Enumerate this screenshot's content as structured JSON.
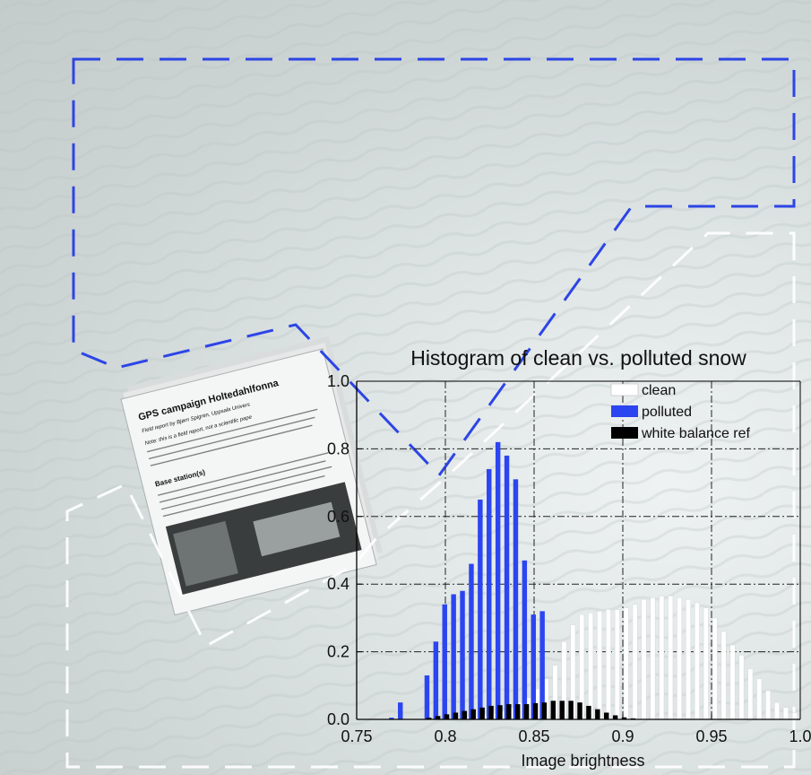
{
  "doc": {
    "heading": "GPS campaign Holtedahlfonna",
    "byline": "Field report by Bjørn Spigren, Uppsala Univers",
    "note": "Note: this is a field report, not a scientific pape",
    "section": "Base station(s)"
  },
  "chart_data": {
    "type": "bar",
    "title": "Histogram of clean vs. polluted snow",
    "xlabel": "Image brightness",
    "ylabel": "",
    "xlim": [
      0.75,
      1.0
    ],
    "ylim": [
      0,
      1.0
    ],
    "xticks": [
      "0.75",
      "0.8",
      "0.85",
      "0.9",
      "0.95",
      "1.0"
    ],
    "yticks": [
      "0.0",
      "0.2",
      "0.4",
      "0.6",
      "0.8",
      "1.0"
    ],
    "grid": true,
    "legend_position": "top-right",
    "series": [
      {
        "name": "clean",
        "color": "#ffffff",
        "x": [
          0.77,
          0.775,
          0.78,
          0.785,
          0.79,
          0.795,
          0.8,
          0.805,
          0.81,
          0.815,
          0.82,
          0.825,
          0.83,
          0.835,
          0.84,
          0.845,
          0.85,
          0.855,
          0.86,
          0.865,
          0.87,
          0.875,
          0.88,
          0.885,
          0.89,
          0.895,
          0.9,
          0.905,
          0.91,
          0.915,
          0.92,
          0.925,
          0.93,
          0.935,
          0.94,
          0.945,
          0.95,
          0.955,
          0.96,
          0.965,
          0.97,
          0.975,
          0.98,
          0.985,
          0.99,
          0.995
        ],
        "values": [
          0,
          0,
          0,
          0,
          0,
          0,
          0.002,
          0.004,
          0.006,
          0.008,
          0.012,
          0.018,
          0.025,
          0.035,
          0.05,
          0.065,
          0.09,
          0.12,
          0.16,
          0.23,
          0.28,
          0.31,
          0.315,
          0.32,
          0.325,
          0.325,
          0.33,
          0.34,
          0.355,
          0.36,
          0.365,
          0.365,
          0.36,
          0.355,
          0.345,
          0.33,
          0.3,
          0.26,
          0.22,
          0.19,
          0.15,
          0.12,
          0.085,
          0.05,
          0.035,
          0.02
        ]
      },
      {
        "name": "polluted",
        "color": "#2b45f0",
        "x": [
          0.77,
          0.775,
          0.78,
          0.785,
          0.79,
          0.795,
          0.8,
          0.805,
          0.81,
          0.815,
          0.82,
          0.825,
          0.83,
          0.835,
          0.84,
          0.845,
          0.85,
          0.855,
          0.86,
          0.865,
          0.87,
          0.875,
          0.88,
          0.885,
          0.89,
          0.895,
          0.9,
          0.905,
          0.91,
          0.915,
          0.92,
          0.925,
          0.93,
          0.935,
          0.94,
          0.945,
          0.95,
          0.955,
          0.96,
          0.965,
          0.97,
          0.975,
          0.98,
          0.985,
          0.99,
          0.995
        ],
        "values": [
          0.005,
          0.05,
          0.0,
          0.0,
          0.13,
          0.23,
          0.34,
          0.37,
          0.38,
          0.46,
          0.65,
          0.74,
          0.82,
          0.78,
          0.71,
          0.47,
          0.31,
          0.32,
          0.0,
          0,
          0,
          0,
          0,
          0,
          0,
          0,
          0,
          0,
          0,
          0,
          0,
          0,
          0,
          0,
          0,
          0,
          0,
          0,
          0,
          0,
          0,
          0,
          0,
          0,
          0,
          0
        ]
      },
      {
        "name": "white balance ref",
        "color": "#000000",
        "x": [
          0.77,
          0.775,
          0.78,
          0.785,
          0.79,
          0.795,
          0.8,
          0.805,
          0.81,
          0.815,
          0.82,
          0.825,
          0.83,
          0.835,
          0.84,
          0.845,
          0.85,
          0.855,
          0.86,
          0.865,
          0.87,
          0.875,
          0.88,
          0.885,
          0.89,
          0.895,
          0.9,
          0.905,
          0.91,
          0.915,
          0.92,
          0.925,
          0.93,
          0.935,
          0.94,
          0.945,
          0.95,
          0.955,
          0.96,
          0.965,
          0.97,
          0.975,
          0.98,
          0.985,
          0.99,
          0.995
        ],
        "values": [
          0,
          0,
          0,
          0,
          0.005,
          0.01,
          0.015,
          0.02,
          0.025,
          0.03,
          0.035,
          0.04,
          0.042,
          0.045,
          0.045,
          0.045,
          0.048,
          0.05,
          0.055,
          0.055,
          0.055,
          0.05,
          0.04,
          0.03,
          0.02,
          0.012,
          0.006,
          0.003,
          0.001,
          0,
          0,
          0,
          0,
          0,
          0,
          0,
          0,
          0,
          0,
          0,
          0,
          0,
          0,
          0,
          0,
          0
        ]
      }
    ]
  }
}
